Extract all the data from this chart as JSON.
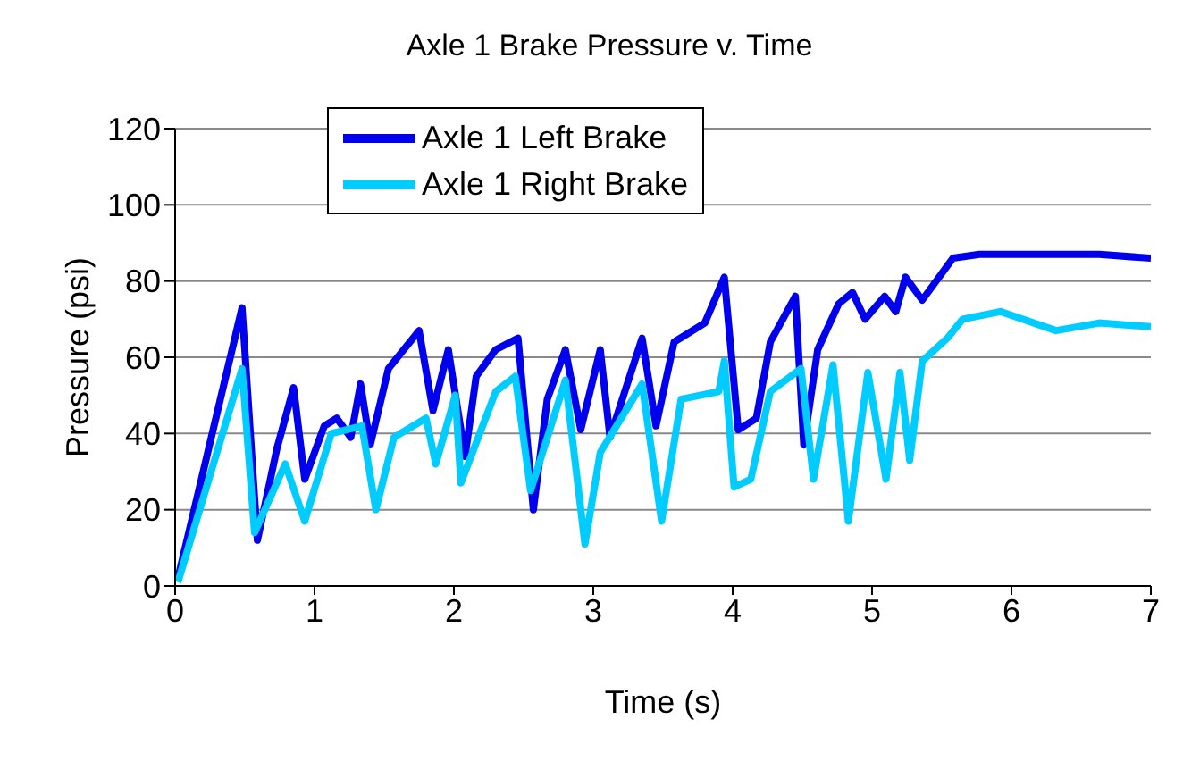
{
  "chart_data": {
    "type": "line",
    "title": "Axle 1 Brake Pressure v. Time",
    "xlabel": "Time (s)",
    "ylabel": "Pressure (psi)",
    "xlim": [
      0,
      7
    ],
    "xticks": [
      0,
      1,
      2,
      3,
      4,
      5,
      6,
      7
    ],
    "ylim": [
      0,
      120
    ],
    "yticks": [
      0,
      20,
      40,
      60,
      80,
      100,
      120
    ],
    "grid": "y",
    "legend": "top left",
    "marker": "none",
    "line_style": "solid",
    "series": [
      {
        "name": "Axle 1 Left Brake",
        "color": "#0000ee",
        "x": [
          0.02,
          0.48,
          0.59,
          0.73,
          0.85,
          0.93,
          1.07,
          1.16,
          1.26,
          1.33,
          1.4,
          1.53,
          1.75,
          1.85,
          1.96,
          2.08,
          2.16,
          2.3,
          2.46,
          2.57,
          2.67,
          2.8,
          2.91,
          3.05,
          3.12,
          3.35,
          3.45,
          3.58,
          3.8,
          3.94,
          4.04,
          4.17,
          4.27,
          4.45,
          4.51,
          4.61,
          4.76,
          4.86,
          4.95,
          5.09,
          5.17,
          5.24,
          5.36,
          5.58,
          5.77,
          6.63,
          7.0
        ],
        "values": [
          2,
          73,
          12,
          36,
          52,
          28,
          42,
          44,
          39,
          53,
          37,
          57,
          67,
          46,
          62,
          34,
          55,
          62,
          65,
          20,
          49,
          62,
          41,
          62,
          39,
          65,
          42,
          64,
          69,
          81,
          41,
          44,
          64,
          76,
          37,
          62,
          74,
          77,
          70,
          76,
          72,
          81,
          75,
          86,
          87,
          87,
          86
        ]
      },
      {
        "name": "Axle 1 Right Brake",
        "color": "#00ccff",
        "x": [
          0.02,
          0.48,
          0.57,
          0.79,
          0.93,
          1.12,
          1.34,
          1.44,
          1.57,
          1.8,
          1.87,
          2.01,
          2.05,
          2.3,
          2.44,
          2.55,
          2.8,
          2.94,
          3.05,
          3.35,
          3.49,
          3.63,
          3.9,
          3.94,
          4.01,
          4.13,
          4.27,
          4.49,
          4.58,
          4.72,
          4.83,
          4.97,
          5.1,
          5.2,
          5.27,
          5.36,
          5.54,
          5.65,
          5.92,
          6.32,
          6.63,
          7.0
        ],
        "values": [
          1,
          57,
          14,
          32,
          17,
          40,
          42,
          20,
          39,
          44,
          32,
          50,
          27,
          51,
          55,
          25,
          54,
          11,
          35,
          53,
          17,
          49,
          51,
          59,
          26,
          28,
          51,
          57,
          28,
          58,
          17,
          56,
          28,
          56,
          33,
          59,
          65,
          70,
          72,
          67,
          69,
          68
        ]
      }
    ]
  }
}
